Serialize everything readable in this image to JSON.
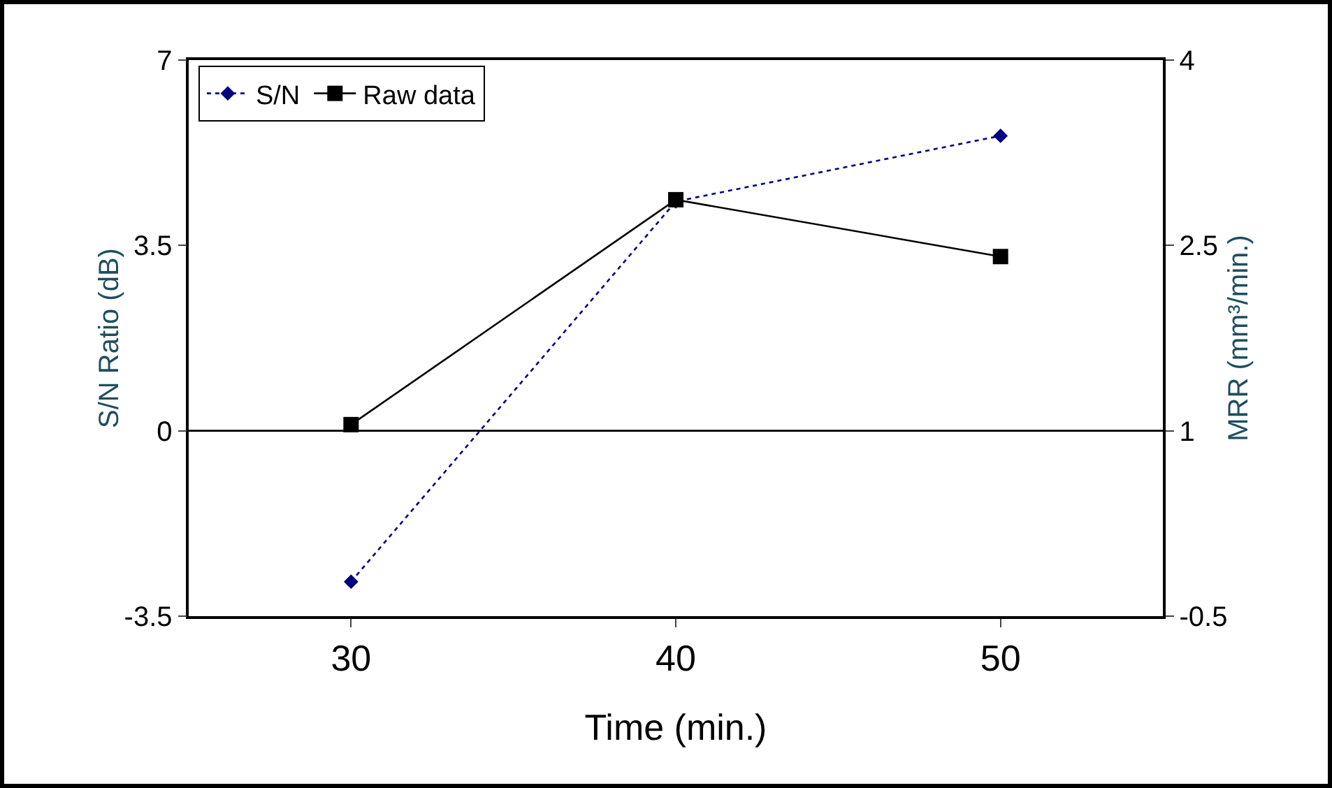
{
  "chart_data": {
    "type": "line",
    "xlabel": "Time (min.)",
    "ylabel": "S/N Ratio (dB)",
    "y2label": "MRR (mm³/min.)",
    "x": [
      30,
      40,
      50
    ],
    "series": [
      {
        "name": "S/N",
        "color": "#000080",
        "values": [
          -2.85,
          4.33,
          5.57
        ],
        "marker": "diamond",
        "line_style": "dotted"
      },
      {
        "name": "Raw data",
        "color": "#000000",
        "values": [
          1.05,
          2.87,
          2.41
        ],
        "marker": "square",
        "line_style": "solid",
        "axis": "y2"
      }
    ],
    "xlim": [
      25,
      55
    ],
    "xticks": [
      30,
      40,
      50
    ],
    "ylim": [
      -3.5,
      7
    ],
    "yticks": [
      -3.5,
      0,
      3.5,
      7
    ],
    "y2lim": [
      -0.5,
      4
    ],
    "y2ticks": [
      -0.5,
      1,
      2.5,
      4
    ],
    "ref_lines": [
      {
        "axis": "y",
        "value": 0,
        "color": "#000000"
      }
    ],
    "grid": false,
    "legend": "top left"
  }
}
